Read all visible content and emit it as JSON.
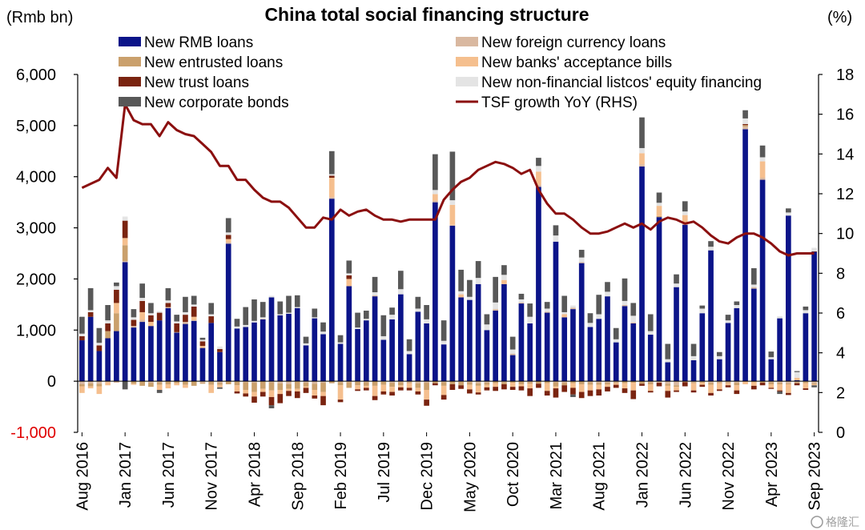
{
  "chart_data": {
    "type": "stacked-bar-with-line",
    "title": "China total social financing structure",
    "ylabel_left": "(Rmb bn)",
    "ylabel_right": "(%)",
    "ylim_left": [
      -1000,
      6000
    ],
    "ylim_right": [
      0,
      18
    ],
    "yticks_left": [
      "-1,000",
      "0",
      "1,000",
      "2,000",
      "3,000",
      "4,000",
      "5,000",
      "6,000"
    ],
    "yticks_right": [
      "0",
      "2",
      "4",
      "6",
      "8",
      "10",
      "12",
      "14",
      "16",
      "18"
    ],
    "x_tick_labels": [
      "Aug 2016",
      "Jan 2017",
      "Jun 2017",
      "Nov 2017",
      "Apr 2018",
      "Sep 2018",
      "Feb 2019",
      "Jul 2019",
      "Dec 2019",
      "May 2020",
      "Oct 2020",
      "Mar 2021",
      "Aug 2021",
      "Jan 2022",
      "Jun 2022",
      "Nov 2022",
      "Apr 2023",
      "Sep 2023"
    ],
    "legend": [
      {
        "name": "New RMB loans",
        "color": "#0b1489",
        "kind": "bar"
      },
      {
        "name": "New foreign currency loans",
        "color": "#d9b8a0",
        "kind": "bar"
      },
      {
        "name": "New entrusted loans",
        "color": "#caa06c",
        "kind": "bar"
      },
      {
        "name": "New banks' acceptance bills",
        "color": "#f5bf8e",
        "kind": "bar"
      },
      {
        "name": "New trust loans",
        "color": "#7a2410",
        "kind": "bar"
      },
      {
        "name": "New non-financial listcos' equity financing",
        "color": "#e4e4e4",
        "kind": "bar"
      },
      {
        "name": "New corporate bonds",
        "color": "#585858",
        "kind": "bar"
      },
      {
        "name": "TSF growth YoY (RHS)",
        "color": "#8b0f0f",
        "kind": "line"
      }
    ],
    "months": [
      "Aug 2016",
      "Sep 2016",
      "Oct 2016",
      "Nov 2016",
      "Dec 2016",
      "Jan 2017",
      "Feb 2017",
      "Mar 2017",
      "Apr 2017",
      "May 2017",
      "Jun 2017",
      "Jul 2017",
      "Aug 2017",
      "Sep 2017",
      "Oct 2017",
      "Nov 2017",
      "Dec 2017",
      "Jan 2018",
      "Feb 2018",
      "Mar 2018",
      "Apr 2018",
      "May 2018",
      "Jun 2018",
      "Jul 2018",
      "Aug 2018",
      "Sep 2018",
      "Oct 2018",
      "Nov 2018",
      "Dec 2018",
      "Jan 2019",
      "Feb 2019",
      "Mar 2019",
      "Apr 2019",
      "May 2019",
      "Jun 2019",
      "Jul 2019",
      "Aug 2019",
      "Sep 2019",
      "Oct 2019",
      "Nov 2019",
      "Dec 2019",
      "Jan 2020",
      "Feb 2020",
      "Mar 2020",
      "Apr 2020",
      "May 2020",
      "Jun 2020",
      "Jul 2020",
      "Aug 2020",
      "Sep 2020",
      "Oct 2020",
      "Nov 2020",
      "Dec 2020",
      "Jan 2021",
      "Feb 2021",
      "Mar 2021",
      "Apr 2021",
      "May 2021",
      "Jun 2021",
      "Jul 2021",
      "Aug 2021",
      "Sep 2021",
      "Oct 2021",
      "Nov 2021",
      "Dec 2021",
      "Jan 2022",
      "Feb 2022",
      "Mar 2022",
      "Apr 2022",
      "May 2022",
      "Jun 2022",
      "Jul 2022",
      "Aug 2022",
      "Sep 2022",
      "Oct 2022",
      "Nov 2022",
      "Dec 2022",
      "Jan 2023",
      "Feb 2023",
      "Mar 2023",
      "Apr 2023",
      "May 2023",
      "Jun 2023",
      "Jul 2023",
      "Aug 2023",
      "Sep 2023"
    ],
    "series": [
      {
        "name": "New RMB loans",
        "values": [
          800,
          1260,
          590,
          840,
          980,
          2330,
          1050,
          1160,
          1080,
          1190,
          1430,
          950,
          1120,
          1180,
          650,
          1140,
          570,
          2690,
          1030,
          1060,
          1150,
          1210,
          1640,
          1290,
          1320,
          1430,
          700,
          1230,
          920,
          3570,
          730,
          1860,
          1020,
          1190,
          1660,
          810,
          1210,
          1700,
          530,
          1360,
          1130,
          3500,
          720,
          3040,
          1640,
          1590,
          1900,
          1000,
          1380,
          1900,
          510,
          1520,
          1130,
          3800,
          1340,
          2730,
          1250,
          1410,
          2310,
          1060,
          1220,
          1660,
          760,
          1470,
          1130,
          4200,
          910,
          3210,
          370,
          1840,
          3060,
          410,
          1330,
          2560,
          430,
          1140,
          1430,
          4930,
          1810,
          3940,
          430,
          1230,
          3240,
          18,
          1330,
          2530
        ]
      },
      {
        "name": "New foreign currency loans",
        "values": [
          -60,
          -40,
          -50,
          -20,
          -30,
          20,
          30,
          40,
          -30,
          -20,
          20,
          10,
          40,
          20,
          -30,
          -10,
          -30,
          30,
          -10,
          -20,
          -30,
          10,
          -20,
          -40,
          -60,
          -10,
          -30,
          -50,
          -30,
          30,
          -20,
          -20,
          -10,
          -20,
          20,
          -10,
          -30,
          -20,
          -20,
          -40,
          -30,
          30,
          -20,
          20,
          -10,
          -20,
          -40,
          -30,
          30,
          -20,
          30,
          20,
          -20,
          40,
          20,
          -20,
          -30,
          30,
          20,
          -20,
          -30,
          -30,
          -20,
          20,
          20,
          40,
          -20,
          -30,
          -50,
          -80,
          30,
          -20,
          -10,
          -30,
          -20,
          -20,
          -30,
          50,
          30,
          40,
          -20,
          -30,
          -40,
          -20,
          -10,
          -40
        ]
      },
      {
        "name": "New entrusted loans",
        "values": [
          -40,
          -60,
          -50,
          140,
          350,
          310,
          -50,
          -90,
          -80,
          -50,
          -60,
          -40,
          -70,
          -90,
          -20,
          -60,
          -40,
          -60,
          -70,
          -150,
          -180,
          -150,
          -160,
          -130,
          -90,
          -140,
          -70,
          -120,
          -180,
          -40,
          -60,
          -110,
          -70,
          -70,
          -90,
          -60,
          -80,
          -60,
          -20,
          -90,
          -140,
          -40,
          -70,
          -60,
          -70,
          -50,
          -50,
          -40,
          -40,
          -40,
          -30,
          -60,
          -30,
          -50,
          -40,
          -80,
          -50,
          -40,
          -60,
          -50,
          -40,
          -30,
          -20,
          -40,
          -30,
          -50,
          -40,
          20,
          -40,
          -30,
          -20,
          -20,
          -20,
          -40,
          -20,
          -20,
          -50,
          30,
          -20,
          -30,
          -40,
          -30,
          -20,
          -20,
          -30,
          -20
        ]
      },
      {
        "name": "New banks' acceptance bills",
        "values": [
          -130,
          -40,
          -150,
          -60,
          200,
          140,
          -20,
          150,
          80,
          -100,
          -80,
          -40,
          -60,
          60,
          40,
          -160,
          -50,
          60,
          -120,
          -70,
          -90,
          -60,
          -130,
          -80,
          -40,
          -50,
          -30,
          -110,
          -80,
          380,
          -280,
          140,
          -80,
          -40,
          -200,
          -130,
          -100,
          -40,
          -90,
          -70,
          -190,
          130,
          -180,
          390,
          60,
          -90,
          -130,
          -50,
          -70,
          80,
          -80,
          -40,
          -90,
          260,
          -150,
          -40,
          60,
          -90,
          -150,
          -110,
          -90,
          -50,
          -30,
          -100,
          -150,
          220,
          -130,
          200,
          -100,
          -70,
          160,
          -140,
          -40,
          -160,
          -120,
          -40,
          -100,
          -60,
          -70,
          320,
          -70,
          -120,
          -170,
          50,
          -100,
          -20
        ]
      },
      {
        "name": "New trust loans",
        "values": [
          80,
          90,
          110,
          150,
          260,
          340,
          120,
          220,
          130,
          150,
          80,
          170,
          140,
          200,
          90,
          130,
          60,
          80,
          -40,
          -60,
          -120,
          -90,
          -160,
          -180,
          -100,
          -130,
          -100,
          -60,
          -180,
          40,
          -50,
          70,
          -30,
          -50,
          -80,
          -60,
          -70,
          -60,
          -50,
          -60,
          -120,
          -40,
          -90,
          -110,
          -70,
          -80,
          -40,
          -60,
          -80,
          -100,
          -60,
          -80,
          -150,
          -80,
          -90,
          -180,
          -130,
          -130,
          -120,
          -110,
          -120,
          -90,
          -60,
          -90,
          -170,
          -40,
          -30,
          -70,
          -130,
          -30,
          -80,
          -40,
          -40,
          -50,
          -30,
          -40,
          -70,
          20,
          -70,
          -50,
          -20,
          -20,
          -40,
          -40,
          -30,
          10
        ]
      },
      {
        "name": "New non-financial listcos' equity financing",
        "values": [
          50,
          40,
          50,
          60,
          70,
          80,
          50,
          60,
          40,
          30,
          50,
          40,
          50,
          40,
          30,
          40,
          50,
          50,
          40,
          40,
          30,
          30,
          30,
          20,
          20,
          20,
          40,
          20,
          50,
          30,
          30,
          40,
          30,
          30,
          60,
          70,
          90,
          100,
          60,
          60,
          80,
          80,
          70,
          90,
          60,
          60,
          120,
          110,
          130,
          100,
          80,
          60,
          130,
          110,
          60,
          120,
          40,
          40,
          90,
          80,
          90,
          90,
          60,
          80,
          130,
          100,
          70,
          60,
          60,
          70,
          70,
          80,
          90,
          70,
          60,
          50,
          60,
          110,
          50,
          80,
          40,
          40,
          60,
          110,
          60,
          70
        ]
      },
      {
        "name": "New corporate bonds",
        "values": [
          330,
          430,
          290,
          300,
          70,
          -160,
          160,
          280,
          200,
          -60,
          240,
          130,
          300,
          170,
          40,
          220,
          -30,
          280,
          150,
          350,
          420,
          300,
          -60,
          250,
          330,
          230,
          130,
          170,
          180,
          450,
          140,
          250,
          290,
          160,
          300,
          410,
          140,
          360,
          230,
          230,
          280,
          700,
          400,
          950,
          420,
          330,
          330,
          200,
          500,
          190,
          250,
          110,
          260,
          160,
          130,
          200,
          320,
          -50,
          150,
          190,
          380,
          190,
          220,
          440,
          250,
          600,
          330,
          200,
          300,
          180,
          200,
          240,
          60,
          110,
          80,
          110,
          70,
          160,
          320,
          230,
          110,
          -50,
          80,
          20,
          70,
          -40
        ]
      },
      {
        "name": "TSF growth YoY (RHS)",
        "values": [
          12.3,
          12.5,
          12.7,
          13.3,
          12.8,
          16.5,
          15.7,
          15.5,
          15.5,
          14.9,
          15.6,
          15.2,
          15.0,
          14.9,
          14.5,
          14.1,
          13.4,
          13.4,
          12.7,
          12.7,
          12.2,
          11.8,
          11.6,
          11.6,
          11.3,
          10.8,
          10.3,
          10.3,
          10.8,
          10.7,
          11.2,
          10.9,
          11.1,
          11.2,
          10.9,
          10.7,
          10.7,
          10.6,
          10.7,
          10.7,
          10.7,
          10.7,
          11.7,
          12.2,
          12.6,
          12.8,
          13.2,
          13.4,
          13.6,
          13.5,
          13.3,
          13.0,
          13.2,
          12.2,
          11.5,
          11.0,
          11.0,
          10.7,
          10.3,
          10.0,
          10.0,
          10.1,
          10.3,
          10.5,
          10.3,
          10.5,
          10.2,
          10.6,
          10.8,
          10.7,
          10.5,
          10.6,
          10.3,
          9.9,
          9.6,
          9.5,
          9.8,
          10.0,
          10.0,
          9.8,
          9.5,
          9.1,
          8.9,
          9.0,
          9.0,
          9.0
        ]
      }
    ]
  },
  "watermark": "格隆汇"
}
